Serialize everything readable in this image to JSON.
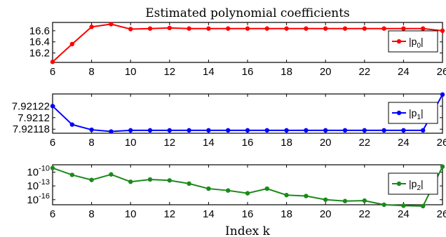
{
  "chart_data": {
    "title": "Estimated polynomial coefficients",
    "xlabel": "Index k",
    "x": [
      6,
      7,
      8,
      9,
      10,
      11,
      12,
      13,
      14,
      15,
      16,
      17,
      18,
      19,
      20,
      21,
      22,
      23,
      24,
      25,
      26
    ],
    "xticks": [
      "6",
      "8",
      "10",
      "12",
      "14",
      "16",
      "18",
      "20",
      "22",
      "24",
      "26"
    ],
    "xlim": [
      6,
      26
    ],
    "panels": [
      {
        "type": "line",
        "color": "#ff0000",
        "legend_base": "|p",
        "legend_sub": "0",
        "legend_end": "|",
        "legend_position": "right",
        "scale": "linear",
        "ylim": [
          16.03,
          16.75
        ],
        "yticks": [
          16.2,
          16.4,
          16.6
        ],
        "ytick_labels": [
          "16.2",
          "16.4",
          "16.6"
        ],
        "values": [
          16.04,
          16.36,
          16.67,
          16.72,
          16.63,
          16.64,
          16.65,
          16.64,
          16.64,
          16.64,
          16.64,
          16.64,
          16.64,
          16.64,
          16.64,
          16.64,
          16.64,
          16.64,
          16.64,
          16.64,
          16.6
        ]
      },
      {
        "type": "line",
        "color": "#0000ff",
        "legend_base": "|p",
        "legend_sub": "1",
        "legend_end": "|",
        "legend_position": "right",
        "scale": "linear",
        "ylim": [
          7.921173,
          7.921241
        ],
        "yticks": [
          7.92118,
          7.9212,
          7.92122
        ],
        "ytick_labels": [
          "7.92118",
          "7.9212",
          "7.92122"
        ],
        "values": [
          7.92122,
          7.921188,
          7.921179,
          7.921176,
          7.921178,
          7.921178,
          7.921178,
          7.921178,
          7.921178,
          7.921178,
          7.921178,
          7.921178,
          7.921178,
          7.921178,
          7.921178,
          7.921178,
          7.921178,
          7.921178,
          7.921178,
          7.921178,
          7.92124
        ]
      },
      {
        "type": "line",
        "color": "#1a8a1a",
        "legend_base": "|p",
        "legend_sub": "2",
        "legend_end": "|",
        "legend_position": "right",
        "scale": "log",
        "ylim": [
          -17.1,
          -8.4
        ],
        "yticks": [
          -10,
          -13,
          -16
        ],
        "ytick_base": "10",
        "ytick_exponents": [
          "-10",
          "-13",
          "-16"
        ],
        "values": [
          -9.1,
          -10.6,
          -11.7,
          -10.5,
          -12.1,
          -11.6,
          -11.8,
          -12.5,
          -13.6,
          -14.0,
          -14.6,
          -13.6,
          -15.0,
          -15.2,
          -16.0,
          -16.3,
          -16.2,
          -17.1,
          -17.3,
          -17.4,
          -8.8
        ]
      }
    ]
  }
}
